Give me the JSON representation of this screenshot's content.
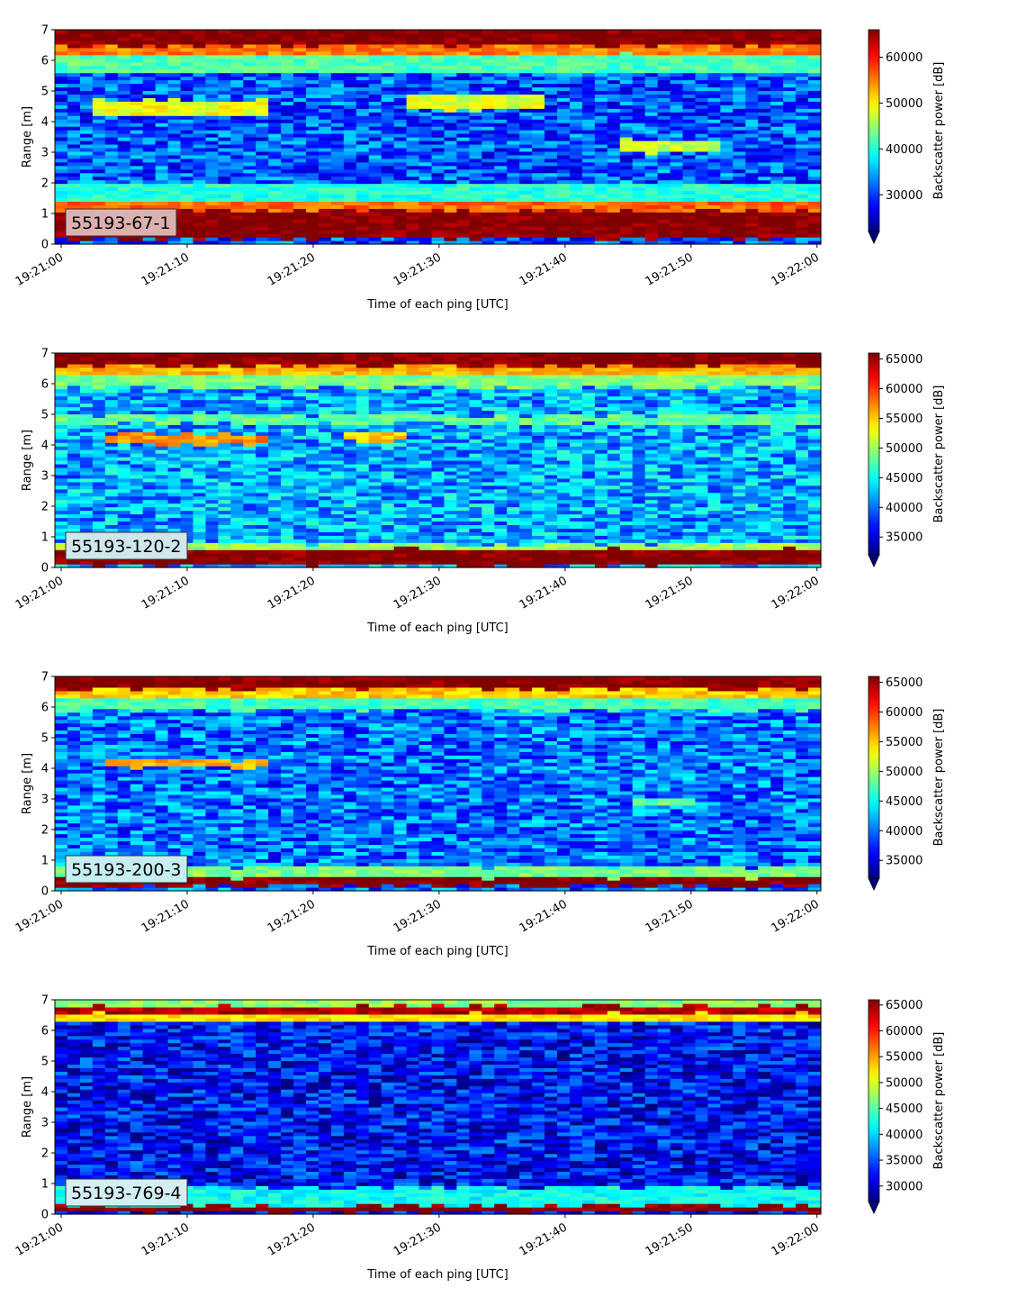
{
  "chart_data": [
    {
      "type": "heatmap",
      "label": "55193-67-1",
      "xlabel": "Time of each ping [UTC]",
      "ylabel": "Range [m]",
      "xticks": [
        "19:21:00",
        "19:21:10",
        "19:21:20",
        "19:21:30",
        "19:21:40",
        "19:21:50",
        "19:22:00"
      ],
      "xlim": [
        "19:21:00",
        "19:22:00"
      ],
      "ylim": [
        0,
        7
      ],
      "yticks": [
        "0",
        "1",
        "2",
        "3",
        "4",
        "5",
        "6",
        "7"
      ],
      "colorbar": {
        "label": "Backscatter power [dB]",
        "range": [
          22000,
          66000
        ],
        "ticks": [
          "30000",
          "40000",
          "50000",
          "60000"
        ],
        "colormap": "jet",
        "extend": "min"
      },
      "features": [
        {
          "range_m": [
            0.2,
            1.1
          ],
          "level": 66000
        },
        {
          "range_m": [
            1.1,
            1.4
          ],
          "level": 56000
        },
        {
          "range_m": [
            1.4,
            2.0
          ],
          "level": 40000
        },
        {
          "range_m": [
            4.2,
            4.7
          ],
          "level": 49000,
          "time_span": [
            "19:21:03",
            "19:21:16"
          ]
        },
        {
          "range_m": [
            4.4,
            4.9
          ],
          "level": 48000,
          "time_span": [
            "19:21:28",
            "19:21:38"
          ]
        },
        {
          "range_m": [
            3.0,
            3.4
          ],
          "level": 47000,
          "time_span": [
            "19:21:45",
            "19:21:52"
          ]
        },
        {
          "range_m": [
            5.6,
            6.2
          ],
          "level": 42000
        },
        {
          "range_m": [
            6.2,
            6.5
          ],
          "level": 55000
        },
        {
          "range_m": [
            6.5,
            7.0
          ],
          "level": 66000
        }
      ],
      "background_level": 31000
    },
    {
      "type": "heatmap",
      "label": "55193-120-2",
      "xlabel": "Time of each ping [UTC]",
      "ylabel": "Range [m]",
      "xticks": [
        "19:21:00",
        "19:21:10",
        "19:21:20",
        "19:21:30",
        "19:21:40",
        "19:21:50",
        "19:22:00"
      ],
      "xlim": [
        "19:21:00",
        "19:22:00"
      ],
      "ylim": [
        0,
        7
      ],
      "yticks": [
        "0",
        "1",
        "2",
        "3",
        "4",
        "5",
        "6",
        "7"
      ],
      "colorbar": {
        "label": "Backscatter power [dB]",
        "range": [
          32000,
          66000
        ],
        "ticks": [
          "35000",
          "40000",
          "45000",
          "50000",
          "55000",
          "60000",
          "65000"
        ],
        "colormap": "jet",
        "extend": "min"
      },
      "features": [
        {
          "range_m": [
            0.1,
            0.6
          ],
          "level": 66000
        },
        {
          "range_m": [
            0.6,
            0.8
          ],
          "level": 50000
        },
        {
          "range_m": [
            4.05,
            4.35
          ],
          "level": 57000,
          "time_span": [
            "19:21:04",
            "19:21:16"
          ]
        },
        {
          "range_m": [
            4.15,
            4.4
          ],
          "level": 55000,
          "time_span": [
            "19:21:23",
            "19:21:27"
          ]
        },
        {
          "range_m": [
            4.7,
            5.0
          ],
          "level": 48000
        },
        {
          "range_m": [
            5.9,
            6.3
          ],
          "level": 49000
        },
        {
          "range_m": [
            6.3,
            6.6
          ],
          "level": 56000
        },
        {
          "range_m": [
            6.6,
            7.0
          ],
          "level": 66000
        }
      ],
      "background_level": 42000
    },
    {
      "type": "heatmap",
      "label": "55193-200-3",
      "xlabel": "Time of each ping [UTC]",
      "ylabel": "Range [m]",
      "xticks": [
        "19:21:00",
        "19:21:10",
        "19:21:20",
        "19:21:30",
        "19:21:40",
        "19:21:50",
        "19:22:00"
      ],
      "xlim": [
        "19:21:00",
        "19:22:00"
      ],
      "ylim": [
        0,
        7
      ],
      "yticks": [
        "0",
        "1",
        "2",
        "3",
        "4",
        "5",
        "6",
        "7"
      ],
      "colorbar": {
        "label": "Backscatter power [dB]",
        "range": [
          32000,
          66000
        ],
        "ticks": [
          "35000",
          "40000",
          "45000",
          "50000",
          "55000",
          "60000",
          "65000"
        ],
        "colormap": "jet",
        "extend": "min"
      },
      "features": [
        {
          "range_m": [
            0.15,
            0.45
          ],
          "level": 66000
        },
        {
          "range_m": [
            0.45,
            0.8
          ],
          "level": 49000
        },
        {
          "range_m": [
            4.05,
            4.3
          ],
          "level": 56000,
          "time_span": [
            "19:21:04",
            "19:21:16"
          ]
        },
        {
          "range_m": [
            2.8,
            3.0
          ],
          "level": 48000,
          "time_span": [
            "19:21:46",
            "19:21:50"
          ]
        },
        {
          "range_m": [
            5.9,
            6.3
          ],
          "level": 47000
        },
        {
          "range_m": [
            6.3,
            6.6
          ],
          "level": 55000
        },
        {
          "range_m": [
            6.6,
            7.0
          ],
          "level": 66000
        }
      ],
      "background_level": 40000
    },
    {
      "type": "heatmap",
      "label": "55193-769-4",
      "xlabel": "Time of each ping [UTC]",
      "ylabel": "Range [m]",
      "xticks": [
        "19:21:00",
        "19:21:10",
        "19:21:20",
        "19:21:30",
        "19:21:40",
        "19:21:50",
        "19:22:00"
      ],
      "xlim": [
        "19:21:00",
        "19:22:00"
      ],
      "ylim": [
        0,
        7
      ],
      "yticks": [
        "0",
        "1",
        "2",
        "3",
        "4",
        "5",
        "6",
        "7"
      ],
      "colorbar": {
        "label": "Backscatter power [dB]",
        "range": [
          27000,
          66000
        ],
        "ticks": [
          "30000",
          "35000",
          "40000",
          "45000",
          "50000",
          "55000",
          "60000",
          "65000"
        ],
        "colormap": "jet",
        "extend": "min"
      },
      "features": [
        {
          "range_m": [
            0.1,
            0.3
          ],
          "level": 66000
        },
        {
          "range_m": [
            0.3,
            0.9
          ],
          "level": 42000
        },
        {
          "range_m": [
            6.3,
            6.55
          ],
          "level": 52000
        },
        {
          "range_m": [
            6.55,
            6.8
          ],
          "level": 64000
        },
        {
          "range_m": [
            6.8,
            7.0
          ],
          "level": 47000
        }
      ],
      "background_level": 32000
    }
  ]
}
